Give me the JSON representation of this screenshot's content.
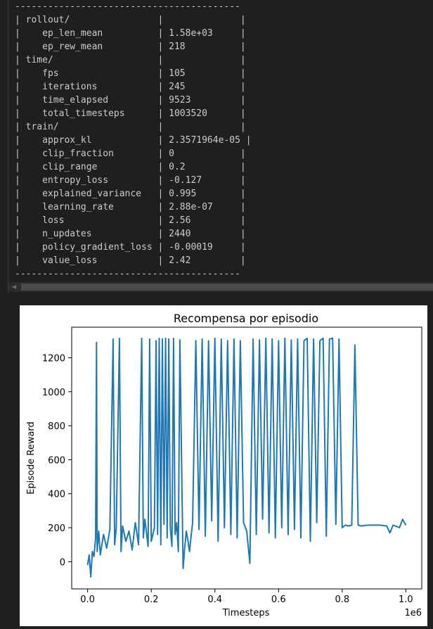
{
  "terminal": {
    "separator": "-----------------------------------------",
    "lines": [
      "| rollout/                |              |",
      "|    ep_len_mean          | 1.58e+03     |",
      "|    ep_rew_mean          | 218          |",
      "| time/                   |              |",
      "|    fps                  | 105          |",
      "|    iterations           | 245          |",
      "|    time_elapsed         | 9523         |",
      "|    total_timesteps      | 1003520      |",
      "| train/                  |              |",
      "|    approx_kl            | 2.3571964e-05 |",
      "|    clip_fraction        | 0            |",
      "|    clip_range           | 0.2          |",
      "|    entropy_loss         | -0.127       |",
      "|    explained_variance   | 0.995        |",
      "|    learning_rate        | 2.88e-07     |",
      "|    loss                 | 2.56         |",
      "|    n_updates            | 2440         |",
      "|    policy_gradient_loss | -0.00019     |",
      "|    value_loss           | 2.42         |"
    ],
    "scroll_left_icon": "triangle-left-icon"
  },
  "chart_data": {
    "type": "line",
    "title": "Recompensa por episodio",
    "xlabel": "Timesteps",
    "ylabel": "Episode Reward",
    "x_offset_label": "1e6",
    "xlim": [
      -0.05,
      1.05
    ],
    "ylim": [
      -160,
      1380
    ],
    "x_ticks": [
      0.0,
      0.2,
      0.4,
      0.6,
      0.8,
      1.0
    ],
    "x_tick_labels": [
      "0.0",
      "0.2",
      "0.4",
      "0.6",
      "0.8",
      "1.0"
    ],
    "y_ticks": [
      0,
      200,
      400,
      600,
      800,
      1000,
      1200
    ],
    "y_tick_labels": [
      "0",
      "200",
      "400",
      "600",
      "800",
      "1000",
      "1200"
    ],
    "line_color": "#1f77b4",
    "grid": false,
    "series": [
      {
        "x": [
          0.0,
          0.005,
          0.01,
          0.015,
          0.02,
          0.025,
          0.028,
          0.03,
          0.035,
          0.04,
          0.05,
          0.06,
          0.07,
          0.08,
          0.085,
          0.09,
          0.1,
          0.105,
          0.11,
          0.12,
          0.13,
          0.14,
          0.15,
          0.16,
          0.17,
          0.175,
          0.18,
          0.19,
          0.195,
          0.2,
          0.21,
          0.215,
          0.22,
          0.225,
          0.23,
          0.235,
          0.24,
          0.245,
          0.25,
          0.255,
          0.26,
          0.265,
          0.27,
          0.275,
          0.28,
          0.285,
          0.29,
          0.3,
          0.305,
          0.31,
          0.315,
          0.32,
          0.33,
          0.34,
          0.35,
          0.36,
          0.37,
          0.38,
          0.39,
          0.4,
          0.41,
          0.42,
          0.43,
          0.44,
          0.45,
          0.46,
          0.47,
          0.48,
          0.49,
          0.5,
          0.51,
          0.52,
          0.53,
          0.54,
          0.55,
          0.56,
          0.57,
          0.58,
          0.59,
          0.6,
          0.61,
          0.62,
          0.63,
          0.64,
          0.65,
          0.66,
          0.67,
          0.68,
          0.69,
          0.7,
          0.71,
          0.72,
          0.73,
          0.74,
          0.75,
          0.76,
          0.77,
          0.78,
          0.79,
          0.8,
          0.81,
          0.82,
          0.83,
          0.84,
          0.85,
          0.86,
          0.88,
          0.9,
          0.92,
          0.94,
          0.95,
          0.96,
          0.98,
          0.99,
          1.0
        ],
        "y": [
          -20,
          40,
          -90,
          60,
          30,
          140,
          1290,
          60,
          180,
          40,
          160,
          80,
          190,
          1310,
          100,
          200,
          1315,
          60,
          210,
          120,
          180,
          70,
          230,
          100,
          1315,
          140,
          250,
          90,
          1310,
          120,
          200,
          1300,
          160,
          1315,
          100,
          1310,
          220,
          1315,
          140,
          1310,
          200,
          90,
          1315,
          160,
          230,
          60,
          1305,
          -40,
          80,
          180,
          130,
          60,
          230,
          1300,
          190,
          1310,
          150,
          1300,
          240,
          1315,
          120,
          1310,
          200,
          1300,
          160,
          1310,
          140,
          1300,
          230,
          180,
          -10,
          1310,
          160,
          1305,
          250,
          1315,
          170,
          1310,
          140,
          1300,
          200,
          1315,
          160,
          1305,
          190,
          1310,
          140,
          1300,
          1315,
          120,
          1310,
          230,
          1300,
          1315,
          150,
          1310,
          1315,
          220,
          1310,
          200,
          215,
          210,
          215,
          1275,
          215,
          210,
          215,
          215,
          215,
          210,
          170,
          215,
          200,
          250,
          215
        ]
      }
    ]
  }
}
